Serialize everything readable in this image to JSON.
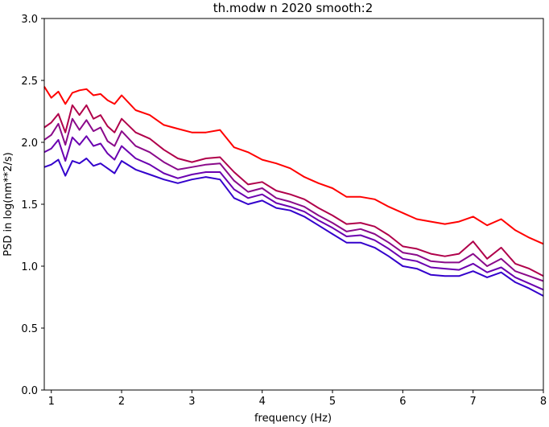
{
  "chart_data": {
    "type": "line",
    "title": "th.modw n 2020 smooth:2",
    "xlabel": "frequency (Hz)",
    "ylabel": "PSD in log(nm**2/s)",
    "xlim": [
      0.9,
      8.0
    ],
    "ylim": [
      0.0,
      3.0
    ],
    "x_ticks": [
      1,
      2,
      3,
      4,
      5,
      6,
      7,
      8
    ],
    "y_ticks": [
      0.0,
      0.5,
      1.0,
      1.5,
      2.0,
      2.5,
      3.0
    ],
    "x_tick_labels": [
      "1",
      "2",
      "3",
      "4",
      "5",
      "6",
      "7",
      "8"
    ],
    "y_tick_labels": [
      "0.0",
      "0.5",
      "1.0",
      "1.5",
      "2.0",
      "2.5",
      "3.0"
    ],
    "grid": false,
    "legend": false,
    "x": [
      0.9,
      1.0,
      1.1,
      1.2,
      1.3,
      1.4,
      1.5,
      1.6,
      1.7,
      1.8,
      1.9,
      2.0,
      2.2,
      2.4,
      2.6,
      2.8,
      3.0,
      3.2,
      3.4,
      3.6,
      3.8,
      4.0,
      4.2,
      4.4,
      4.6,
      4.8,
      5.0,
      5.2,
      5.4,
      5.6,
      5.8,
      6.0,
      6.2,
      6.4,
      6.6,
      6.8,
      7.0,
      7.2,
      7.4,
      7.6,
      7.8,
      8.0
    ],
    "series": [
      {
        "color": "#ff0000",
        "values": [
          2.45,
          2.36,
          2.41,
          2.31,
          2.4,
          2.42,
          2.43,
          2.38,
          2.39,
          2.34,
          2.31,
          2.38,
          2.26,
          2.22,
          2.14,
          2.11,
          2.08,
          2.08,
          2.1,
          1.96,
          1.92,
          1.86,
          1.83,
          1.79,
          1.72,
          1.67,
          1.63,
          1.56,
          1.56,
          1.54,
          1.48,
          1.43,
          1.38,
          1.36,
          1.34,
          1.36,
          1.4,
          1.33,
          1.38,
          1.29,
          1.23,
          1.18
        ]
      },
      {
        "color": "#b0004a",
        "values": [
          2.12,
          2.16,
          2.23,
          2.08,
          2.3,
          2.22,
          2.3,
          2.19,
          2.22,
          2.13,
          2.08,
          2.19,
          2.08,
          2.03,
          1.94,
          1.87,
          1.84,
          1.87,
          1.88,
          1.76,
          1.66,
          1.68,
          1.61,
          1.58,
          1.54,
          1.47,
          1.41,
          1.34,
          1.35,
          1.32,
          1.25,
          1.16,
          1.14,
          1.1,
          1.08,
          1.1,
          1.2,
          1.06,
          1.15,
          1.02,
          0.98,
          0.92
        ]
      },
      {
        "color": "#8a0a8a",
        "values": [
          2.02,
          2.06,
          2.15,
          1.98,
          2.19,
          2.1,
          2.18,
          2.09,
          2.12,
          2.01,
          1.97,
          2.09,
          1.97,
          1.92,
          1.84,
          1.78,
          1.8,
          1.82,
          1.83,
          1.69,
          1.6,
          1.63,
          1.55,
          1.52,
          1.48,
          1.41,
          1.35,
          1.28,
          1.3,
          1.26,
          1.19,
          1.11,
          1.09,
          1.04,
          1.03,
          1.03,
          1.1,
          1.0,
          1.06,
          0.96,
          0.92,
          0.88
        ]
      },
      {
        "color": "#6a00b0",
        "values": [
          1.92,
          1.95,
          2.02,
          1.85,
          2.04,
          1.98,
          2.05,
          1.97,
          1.99,
          1.91,
          1.86,
          1.97,
          1.87,
          1.82,
          1.75,
          1.71,
          1.74,
          1.76,
          1.76,
          1.62,
          1.55,
          1.58,
          1.51,
          1.48,
          1.44,
          1.37,
          1.31,
          1.24,
          1.25,
          1.21,
          1.14,
          1.06,
          1.04,
          0.99,
          0.98,
          0.97,
          1.02,
          0.95,
          0.99,
          0.91,
          0.86,
          0.81
        ]
      },
      {
        "color": "#3300cc",
        "values": [
          1.8,
          1.82,
          1.86,
          1.73,
          1.85,
          1.83,
          1.87,
          1.81,
          1.83,
          1.79,
          1.75,
          1.85,
          1.78,
          1.74,
          1.7,
          1.67,
          1.7,
          1.72,
          1.7,
          1.55,
          1.5,
          1.53,
          1.47,
          1.45,
          1.4,
          1.33,
          1.26,
          1.19,
          1.19,
          1.15,
          1.08,
          1.0,
          0.98,
          0.93,
          0.92,
          0.92,
          0.96,
          0.91,
          0.95,
          0.87,
          0.82,
          0.76
        ]
      }
    ]
  }
}
